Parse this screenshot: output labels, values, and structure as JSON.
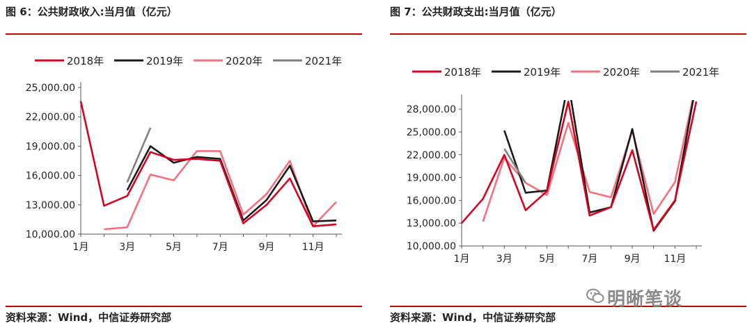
{
  "left": {
    "title": "图 6：公共财政收入:当月值（亿元）",
    "source": "资料来源：Wind，中信证券研究部"
  },
  "right": {
    "title": "图 7：公共财政支出:当月值（亿元）",
    "source": "资料来源：Wind，中信证券研究部"
  },
  "watermark": "明晰笔谈",
  "chart_data": [
    {
      "type": "line",
      "title": "图 6：公共财政收入:当月值（亿元）",
      "xlabel": "",
      "ylabel": "",
      "x": [
        1,
        2,
        3,
        4,
        5,
        6,
        7,
        8,
        9,
        10,
        11,
        12
      ],
      "x_tick_labels": [
        "1月",
        "",
        "3月",
        "",
        "5月",
        "",
        "7月",
        "",
        "9月",
        "",
        "11月",
        ""
      ],
      "y_tick_labels": [
        "10,000.00",
        "13,000.00",
        "16,000.00",
        "19,000.00",
        "22,000.00",
        "25,000.00"
      ],
      "ylim": [
        10000,
        25000
      ],
      "grid": false,
      "legend": "top",
      "series": [
        {
          "name": "2018年",
          "color": "#d7001f",
          "values": [
            23600,
            12900,
            13900,
            18400,
            17600,
            17700,
            17500,
            11100,
            13000,
            15700,
            10800,
            11000
          ]
        },
        {
          "name": "2019年",
          "color": "#1a1a1a",
          "values": [
            null,
            null,
            14500,
            19000,
            17300,
            17900,
            17700,
            11400,
            13500,
            17000,
            11300,
            11400
          ]
        },
        {
          "name": "2020年",
          "color": "#f4707e",
          "values": [
            null,
            10500,
            10700,
            16100,
            15500,
            18500,
            18500,
            12000,
            14100,
            17500,
            10800,
            13300
          ]
        },
        {
          "name": "2021年",
          "color": "#808080",
          "values": [
            null,
            null,
            15300,
            20900,
            null,
            null,
            null,
            null,
            null,
            null,
            null,
            null
          ]
        }
      ]
    },
    {
      "type": "line",
      "title": "图 7：公共财政支出:当月值（亿元）",
      "xlabel": "",
      "ylabel": "",
      "x": [
        1,
        2,
        3,
        4,
        5,
        6,
        7,
        8,
        9,
        10,
        11,
        12
      ],
      "x_tick_labels": [
        "1月",
        "",
        "3月",
        "",
        "5月",
        "",
        "7月",
        "",
        "9月",
        "",
        "11月",
        ""
      ],
      "y_tick_labels": [
        "10,000.00",
        "13,000.00",
        "16,000.00",
        "19,000.00",
        "22,000.00",
        "25,000.00",
        "28,000.00"
      ],
      "ylim": [
        10000,
        29200
      ],
      "grid": false,
      "legend": "top",
      "series": [
        {
          "name": "2018年",
          "color": "#d7001f",
          "values": [
            13000,
            16200,
            22000,
            14700,
            17200,
            29000,
            14000,
            15100,
            22600,
            12100,
            16000,
            29000
          ]
        },
        {
          "name": "2019年",
          "color": "#1a1a1a",
          "values": [
            null,
            null,
            25200,
            17000,
            17300,
            31500,
            14400,
            15100,
            25400,
            12000,
            15900,
            31500
          ]
        },
        {
          "name": "2020年",
          "color": "#f4707e",
          "values": [
            null,
            13200,
            21600,
            18300,
            16700,
            26200,
            17100,
            16400,
            25200,
            14200,
            18400,
            31500
          ]
        },
        {
          "name": "2021年",
          "color": "#808080",
          "values": [
            null,
            null,
            22800,
            18300,
            null,
            null,
            null,
            null,
            null,
            null,
            null,
            null
          ]
        }
      ]
    }
  ]
}
